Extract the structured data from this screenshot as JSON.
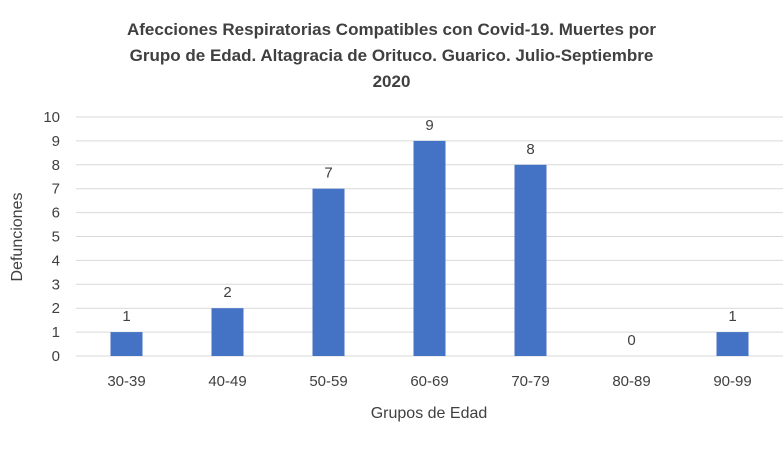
{
  "chart_data": {
    "type": "bar",
    "title_lines": [
      "Afecciones Respiratorias Compatibles con Covid-19. Muertes por",
      "Grupo de Edad. Altagracia de Orituco. Guarico. Julio-Septiembre",
      "2020"
    ],
    "xlabel": "Grupos de Edad",
    "ylabel": "Defunciones",
    "categories": [
      "30-39",
      "40-49",
      "50-59",
      "60-69",
      "70-79",
      "80-89",
      "90-99"
    ],
    "values": [
      1,
      2,
      7,
      9,
      8,
      0,
      1
    ],
    "ylim": [
      0,
      10
    ],
    "yticks": [
      "0",
      "1",
      "2",
      "3",
      "4",
      "5",
      "6",
      "7",
      "8",
      "9",
      "10"
    ],
    "data_labels": [
      "1",
      "2",
      "7",
      "9",
      "8",
      "0",
      "1"
    ],
    "bar_color": "#4472C4",
    "grid_color": "#D9D9D9",
    "grid": true,
    "legend": "none"
  }
}
